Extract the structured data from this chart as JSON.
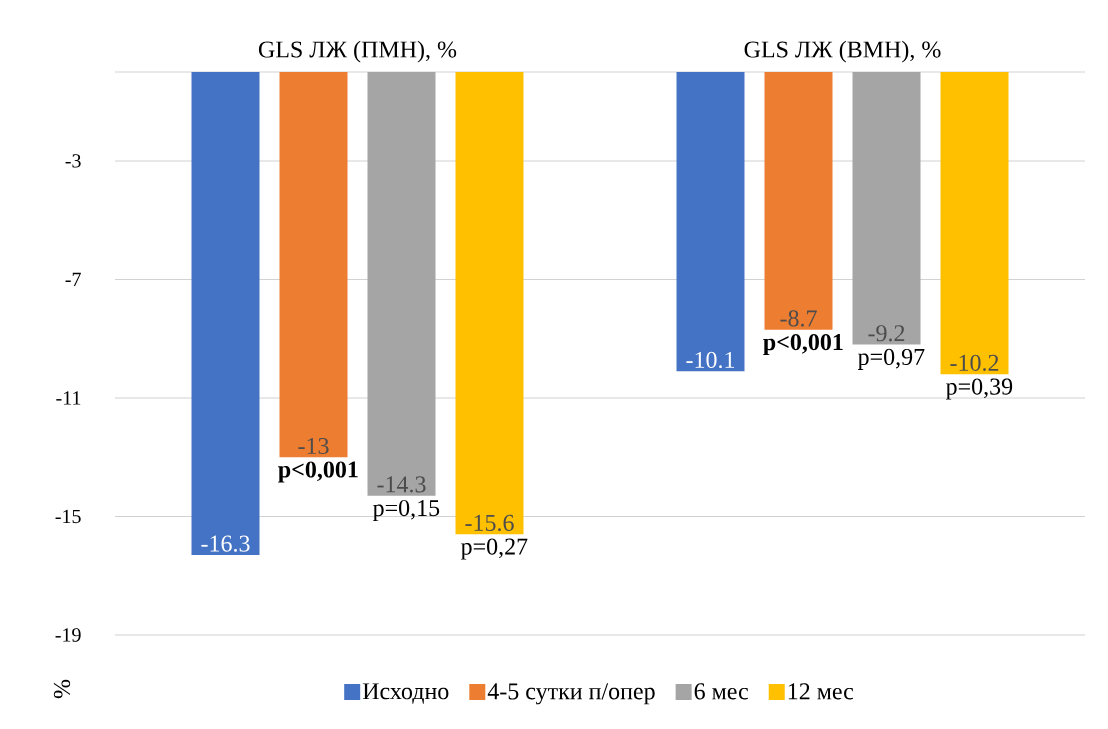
{
  "chart_data": {
    "type": "bar",
    "ylabel": "%",
    "categories": [
      "GLS ЛЖ (ПМН), %",
      "GLS ЛЖ (ВМН), %"
    ],
    "series": [
      {
        "name": "Исходно",
        "color": "#4472c4",
        "values": [
          -16.3,
          -10.1
        ]
      },
      {
        "name": "4-5 сутки п/опер",
        "color": "#ed7d31",
        "values": [
          -13,
          -8.7
        ]
      },
      {
        "name": "6 мес",
        "color": "#a5a5a5",
        "values": [
          -14.3,
          -9.2
        ]
      },
      {
        "name": "12 мес",
        "color": "#ffc000",
        "values": [
          -15.6,
          -10.2
        ]
      }
    ],
    "ylim": [
      -19,
      0
    ],
    "yticks": [
      -19,
      -15,
      -11,
      -7,
      -3,
      {
        "value": 0,
        "label": null
      }
    ],
    "grid": "y",
    "legend": "bottom",
    "data_labels": true,
    "annotations": [
      "**p<0,001**",
      "p=0,15",
      "p=0,27",
      "**p<0,001**",
      "p=0,97",
      "p=0,39"
    ]
  }
}
